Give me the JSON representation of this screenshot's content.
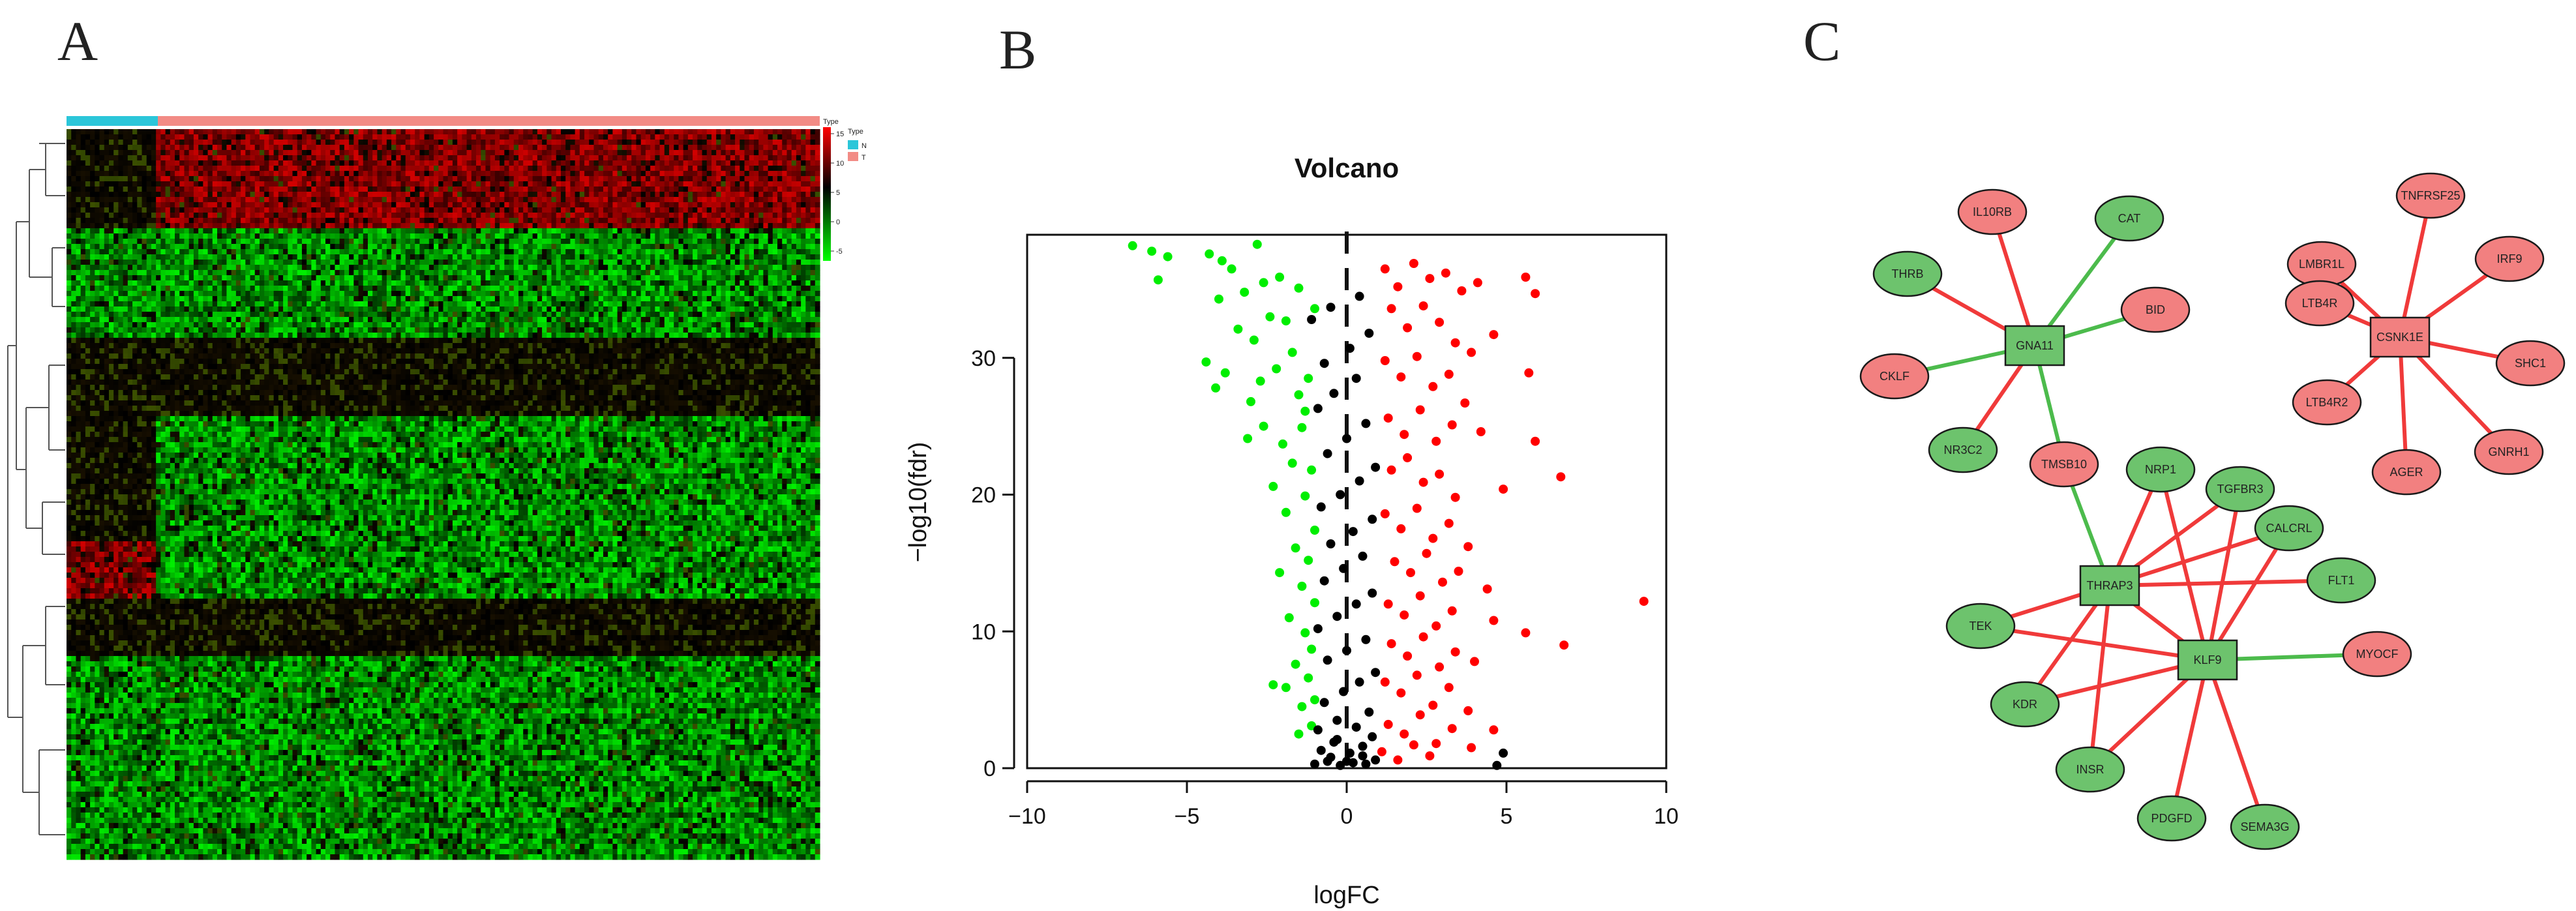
{
  "panels": {
    "a": "A",
    "b": "B",
    "c": "C"
  },
  "heatmap": {
    "annotation_title": "Type",
    "legend": [
      {
        "label": "N",
        "color": "#2BC6D9"
      },
      {
        "label": "T",
        "color": "#F28B85"
      }
    ],
    "scale_ticks": [
      "15",
      "10",
      "5",
      "0",
      "-5"
    ],
    "colors": {
      "high": "#FF0000",
      "mid": "#000000",
      "low": "#00FF00"
    }
  },
  "chart_data": {
    "type": "scatter",
    "title": "Volcano",
    "xlabel": "logFC",
    "ylabel": "−log10(fdr)",
    "xlim": [
      -10,
      10
    ],
    "ylim": [
      0,
      39
    ],
    "xticks": [
      "−10",
      "−5",
      "0",
      "5",
      "10"
    ],
    "yticks": [
      "0",
      "10",
      "20",
      "30"
    ],
    "cutoff_line_x": 0,
    "series": [
      {
        "color": "#00EE00",
        "points": [
          [
            -6.7,
            38.2
          ],
          [
            -6.1,
            37.8
          ],
          [
            -5.6,
            37.4
          ],
          [
            -5.9,
            35.7
          ],
          [
            -4.3,
            37.6
          ],
          [
            -3.9,
            37.1
          ],
          [
            -2.8,
            38.3
          ],
          [
            -3.6,
            36.5
          ],
          [
            -3.2,
            34.8
          ],
          [
            -4.0,
            34.3
          ],
          [
            -2.6,
            35.5
          ],
          [
            -2.1,
            35.9
          ],
          [
            -2.4,
            33.0
          ],
          [
            -3.4,
            32.1
          ],
          [
            -2.9,
            31.3
          ],
          [
            -1.9,
            32.7
          ],
          [
            -4.4,
            29.7
          ],
          [
            -3.8,
            28.9
          ],
          [
            -4.1,
            27.8
          ],
          [
            -2.2,
            29.2
          ],
          [
            -1.7,
            30.4
          ],
          [
            -3.0,
            26.8
          ],
          [
            -2.6,
            25.0
          ],
          [
            -1.5,
            27.3
          ],
          [
            -1.2,
            28.5
          ],
          [
            -3.1,
            24.1
          ],
          [
            -2.0,
            23.7
          ],
          [
            -1.4,
            24.9
          ],
          [
            -1.1,
            21.8
          ],
          [
            -1.7,
            22.3
          ],
          [
            -2.3,
            20.6
          ],
          [
            -1.3,
            19.9
          ],
          [
            -1.9,
            18.7
          ],
          [
            -1.0,
            17.4
          ],
          [
            -1.6,
            16.1
          ],
          [
            -1.2,
            15.2
          ],
          [
            -2.1,
            14.3
          ],
          [
            -1.4,
            13.3
          ],
          [
            -1.0,
            12.1
          ],
          [
            -1.8,
            11.0
          ],
          [
            -1.3,
            9.9
          ],
          [
            -1.1,
            8.7
          ],
          [
            -1.6,
            7.6
          ],
          [
            -1.2,
            6.6
          ],
          [
            -1.9,
            5.9
          ],
          [
            -2.3,
            6.1
          ],
          [
            -1.4,
            4.5
          ],
          [
            -1.1,
            3.1
          ],
          [
            -1.5,
            2.5
          ],
          [
            -1.0,
            5.0
          ],
          [
            -1.3,
            26.1
          ],
          [
            -1.0,
            33.6
          ],
          [
            -1.5,
            35.1
          ],
          [
            -2.7,
            28.3
          ]
        ]
      },
      {
        "color": "#000000",
        "points": [
          [
            -1.0,
            0.3
          ],
          [
            -0.6,
            0.5
          ],
          [
            -0.2,
            0.2
          ],
          [
            0.2,
            0.4
          ],
          [
            0.6,
            0.3
          ],
          [
            0.9,
            0.6
          ],
          [
            -0.8,
            1.3
          ],
          [
            -0.4,
            1.9
          ],
          [
            0.1,
            1.1
          ],
          [
            0.5,
            1.6
          ],
          [
            0.8,
            2.3
          ],
          [
            -0.9,
            2.8
          ],
          [
            -0.3,
            3.5
          ],
          [
            0.3,
            3.0
          ],
          [
            0.7,
            4.1
          ],
          [
            -0.7,
            4.8
          ],
          [
            -0.1,
            5.6
          ],
          [
            0.4,
            6.3
          ],
          [
            0.9,
            7.0
          ],
          [
            -0.6,
            7.9
          ],
          [
            0.0,
            8.6
          ],
          [
            0.6,
            9.4
          ],
          [
            -0.9,
            10.2
          ],
          [
            -0.3,
            11.1
          ],
          [
            0.3,
            12.0
          ],
          [
            0.8,
            12.8
          ],
          [
            -0.7,
            13.7
          ],
          [
            -0.1,
            14.6
          ],
          [
            0.5,
            15.5
          ],
          [
            -0.5,
            16.4
          ],
          [
            0.2,
            17.3
          ],
          [
            0.8,
            18.2
          ],
          [
            -0.8,
            19.1
          ],
          [
            -0.2,
            20.0
          ],
          [
            0.4,
            21.0
          ],
          [
            0.9,
            22.0
          ],
          [
            -0.6,
            23.0
          ],
          [
            0.0,
            24.1
          ],
          [
            0.6,
            25.2
          ],
          [
            -0.9,
            26.3
          ],
          [
            -0.4,
            27.4
          ],
          [
            0.3,
            28.5
          ],
          [
            -0.7,
            29.6
          ],
          [
            0.1,
            30.7
          ],
          [
            0.7,
            31.8
          ],
          [
            -1.1,
            32.8
          ],
          [
            -0.5,
            33.7
          ],
          [
            0.4,
            34.5
          ],
          [
            -0.3,
            2.1
          ],
          [
            0.5,
            0.9
          ],
          [
            -0.5,
            0.8
          ],
          [
            0.0,
            0.5
          ],
          [
            4.7,
            0.2
          ],
          [
            4.9,
            1.1
          ]
        ]
      },
      {
        "color": "#FF0000",
        "points": [
          [
            1.2,
            36.5
          ],
          [
            1.6,
            35.2
          ],
          [
            2.1,
            36.9
          ],
          [
            2.6,
            35.8
          ],
          [
            3.1,
            36.2
          ],
          [
            3.6,
            34.9
          ],
          [
            4.1,
            35.5
          ],
          [
            5.6,
            35.9
          ],
          [
            5.9,
            34.7
          ],
          [
            1.4,
            33.6
          ],
          [
            1.9,
            32.2
          ],
          [
            2.4,
            33.8
          ],
          [
            2.9,
            32.6
          ],
          [
            3.4,
            31.1
          ],
          [
            3.9,
            30.4
          ],
          [
            4.6,
            31.7
          ],
          [
            1.2,
            29.8
          ],
          [
            1.7,
            28.6
          ],
          [
            2.2,
            30.1
          ],
          [
            2.7,
            27.9
          ],
          [
            3.2,
            28.8
          ],
          [
            3.7,
            26.7
          ],
          [
            5.7,
            28.9
          ],
          [
            1.3,
            25.6
          ],
          [
            1.8,
            24.4
          ],
          [
            2.3,
            26.2
          ],
          [
            2.8,
            23.9
          ],
          [
            3.3,
            25.1
          ],
          [
            4.2,
            24.6
          ],
          [
            5.9,
            23.9
          ],
          [
            1.4,
            21.8
          ],
          [
            1.9,
            22.7
          ],
          [
            2.4,
            20.9
          ],
          [
            2.9,
            21.5
          ],
          [
            3.4,
            19.8
          ],
          [
            4.9,
            20.4
          ],
          [
            6.7,
            21.3
          ],
          [
            1.2,
            18.6
          ],
          [
            1.7,
            17.5
          ],
          [
            2.2,
            19.0
          ],
          [
            2.7,
            16.8
          ],
          [
            3.2,
            17.9
          ],
          [
            3.8,
            16.2
          ],
          [
            1.5,
            15.1
          ],
          [
            2.0,
            14.3
          ],
          [
            2.5,
            15.7
          ],
          [
            3.0,
            13.6
          ],
          [
            3.5,
            14.4
          ],
          [
            4.4,
            13.1
          ],
          [
            1.3,
            12.0
          ],
          [
            1.8,
            11.2
          ],
          [
            2.3,
            12.6
          ],
          [
            2.8,
            10.4
          ],
          [
            3.3,
            11.5
          ],
          [
            4.6,
            10.8
          ],
          [
            5.6,
            9.9
          ],
          [
            6.8,
            9.0
          ],
          [
            9.3,
            12.2
          ],
          [
            1.4,
            9.1
          ],
          [
            1.9,
            8.2
          ],
          [
            2.4,
            9.6
          ],
          [
            2.9,
            7.4
          ],
          [
            3.4,
            8.5
          ],
          [
            4.0,
            7.8
          ],
          [
            1.2,
            6.3
          ],
          [
            1.7,
            5.5
          ],
          [
            2.2,
            6.8
          ],
          [
            2.7,
            4.6
          ],
          [
            3.2,
            5.9
          ],
          [
            3.8,
            4.2
          ],
          [
            1.3,
            3.2
          ],
          [
            1.8,
            2.5
          ],
          [
            2.3,
            3.9
          ],
          [
            2.8,
            1.8
          ],
          [
            3.3,
            2.9
          ],
          [
            1.1,
            1.2
          ],
          [
            1.6,
            0.6
          ],
          [
            2.1,
            1.7
          ],
          [
            2.6,
            0.9
          ],
          [
            3.9,
            1.5
          ],
          [
            4.6,
            2.8
          ]
        ]
      }
    ]
  },
  "network": {
    "colors": {
      "green": "#6DC36D",
      "red": "#F28080",
      "edge_red": "#F03A3A",
      "edge_green": "#4CBB4C"
    },
    "nodes": [
      {
        "id": "GNA11",
        "label": "GNA11",
        "shape": "rect",
        "color": "green"
      },
      {
        "id": "IL10RB",
        "label": "IL10RB",
        "shape": "ellipse",
        "color": "red"
      },
      {
        "id": "CAT",
        "label": "CAT",
        "shape": "ellipse",
        "color": "green"
      },
      {
        "id": "THRB",
        "label": "THRB",
        "shape": "ellipse",
        "color": "green"
      },
      {
        "id": "BID",
        "label": "BID",
        "shape": "ellipse",
        "color": "red"
      },
      {
        "id": "CKLF",
        "label": "CKLF",
        "shape": "ellipse",
        "color": "red"
      },
      {
        "id": "NR3C2",
        "label": "NR3C2",
        "shape": "ellipse",
        "color": "green"
      },
      {
        "id": "TMSB10",
        "label": "TMSB10",
        "shape": "ellipse",
        "color": "red"
      },
      {
        "id": "CSNK1E",
        "label": "CSNK1E",
        "shape": "rect",
        "color": "red"
      },
      {
        "id": "LMBR1L",
        "label": "LMBR1L",
        "shape": "ellipse",
        "color": "red"
      },
      {
        "id": "TNFRSF25",
        "label": "TNFRSF25",
        "shape": "ellipse",
        "color": "red"
      },
      {
        "id": "IRF9",
        "label": "IRF9",
        "shape": "ellipse",
        "color": "red"
      },
      {
        "id": "LTB4R",
        "label": "LTB4R",
        "shape": "ellipse",
        "color": "red"
      },
      {
        "id": "SHC1",
        "label": "SHC1",
        "shape": "ellipse",
        "color": "red"
      },
      {
        "id": "LTB4R2",
        "label": "LTB4R2",
        "shape": "ellipse",
        "color": "red"
      },
      {
        "id": "AGER",
        "label": "AGER",
        "shape": "ellipse",
        "color": "red"
      },
      {
        "id": "GNRH1",
        "label": "GNRH1",
        "shape": "ellipse",
        "color": "red"
      },
      {
        "id": "THRAP3",
        "label": "THRAP3",
        "shape": "rect",
        "color": "green"
      },
      {
        "id": "KLF9",
        "label": "KLF9",
        "shape": "rect",
        "color": "green"
      },
      {
        "id": "NRP1",
        "label": "NRP1",
        "shape": "ellipse",
        "color": "green"
      },
      {
        "id": "TGFBR3",
        "label": "TGFBR3",
        "shape": "ellipse",
        "color": "green"
      },
      {
        "id": "CALCRL",
        "label": "CALCRL",
        "shape": "ellipse",
        "color": "green"
      },
      {
        "id": "FLT1",
        "label": "FLT1",
        "shape": "ellipse",
        "color": "green"
      },
      {
        "id": "MYOCF",
        "label": "MYOCF",
        "shape": "ellipse",
        "color": "red"
      },
      {
        "id": "TEK",
        "label": "TEK",
        "shape": "ellipse",
        "color": "green"
      },
      {
        "id": "KDR",
        "label": "KDR",
        "shape": "ellipse",
        "color": "green"
      },
      {
        "id": "INSR",
        "label": "INSR",
        "shape": "ellipse",
        "color": "green"
      },
      {
        "id": "PDGFD",
        "label": "PDGFD",
        "shape": "ellipse",
        "color": "green"
      },
      {
        "id": "SEMA3G",
        "label": "SEMA3G",
        "shape": "ellipse",
        "color": "green"
      }
    ],
    "edges": [
      {
        "s": "GNA11",
        "t": "IL10RB",
        "c": "red"
      },
      {
        "s": "GNA11",
        "t": "CAT",
        "c": "green"
      },
      {
        "s": "GNA11",
        "t": "THRB",
        "c": "red"
      },
      {
        "s": "GNA11",
        "t": "BID",
        "c": "green"
      },
      {
        "s": "GNA11",
        "t": "CKLF",
        "c": "green"
      },
      {
        "s": "GNA11",
        "t": "NR3C2",
        "c": "red"
      },
      {
        "s": "GNA11",
        "t": "TMSB10",
        "c": "green"
      },
      {
        "s": "CSNK1E",
        "t": "LMBR1L",
        "c": "red"
      },
      {
        "s": "CSNK1E",
        "t": "TNFRSF25",
        "c": "red"
      },
      {
        "s": "CSNK1E",
        "t": "IRF9",
        "c": "red"
      },
      {
        "s": "CSNK1E",
        "t": "LTB4R",
        "c": "red"
      },
      {
        "s": "CSNK1E",
        "t": "SHC1",
        "c": "red"
      },
      {
        "s": "CSNK1E",
        "t": "LTB4R2",
        "c": "red"
      },
      {
        "s": "CSNK1E",
        "t": "AGER",
        "c": "red"
      },
      {
        "s": "CSNK1E",
        "t": "GNRH1",
        "c": "red"
      },
      {
        "s": "THRAP3",
        "t": "TMSB10",
        "c": "green"
      },
      {
        "s": "THRAP3",
        "t": "NRP1",
        "c": "red"
      },
      {
        "s": "THRAP3",
        "t": "TGFBR3",
        "c": "red"
      },
      {
        "s": "THRAP3",
        "t": "CALCRL",
        "c": "red"
      },
      {
        "s": "THRAP3",
        "t": "FLT1",
        "c": "red"
      },
      {
        "s": "THRAP3",
        "t": "TEK",
        "c": "red"
      },
      {
        "s": "THRAP3",
        "t": "KDR",
        "c": "red"
      },
      {
        "s": "THRAP3",
        "t": "INSR",
        "c": "red"
      },
      {
        "s": "THRAP3",
        "t": "KLF9",
        "c": "red"
      },
      {
        "s": "KLF9",
        "t": "NRP1",
        "c": "red"
      },
      {
        "s": "KLF9",
        "t": "TGFBR3",
        "c": "red"
      },
      {
        "s": "KLF9",
        "t": "CALCRL",
        "c": "red"
      },
      {
        "s": "KLF9",
        "t": "TEK",
        "c": "red"
      },
      {
        "s": "KLF9",
        "t": "KDR",
        "c": "red"
      },
      {
        "s": "KLF9",
        "t": "INSR",
        "c": "red"
      },
      {
        "s": "KLF9",
        "t": "PDGFD",
        "c": "red"
      },
      {
        "s": "KLF9",
        "t": "SEMA3G",
        "c": "red"
      },
      {
        "s": "KLF9",
        "t": "MYOCF",
        "c": "green"
      }
    ]
  }
}
